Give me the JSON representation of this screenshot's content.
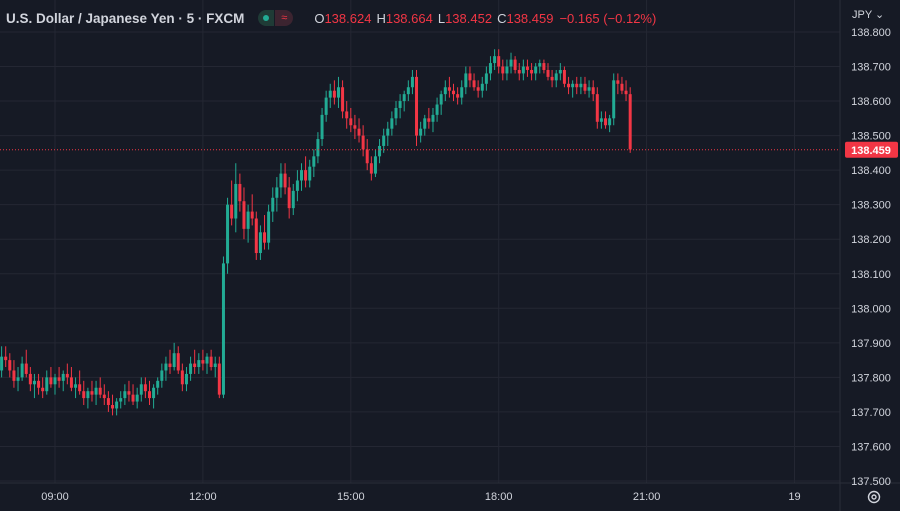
{
  "header": {
    "symbol": "U.S. Dollar / Japanese Yen · 5 · FXCM",
    "open_label": "O",
    "open": "138.624",
    "high_label": "H",
    "high": "138.664",
    "low_label": "L",
    "low": "138.452",
    "close_label": "C",
    "close": "138.459",
    "change": "−0.165 (−0.12%)",
    "badge_right": "≈"
  },
  "currency": "JPY ⌄",
  "colors": {
    "up": "#22ab94",
    "down": "#f23645",
    "background": "#161a25",
    "grid": "#242733",
    "text": "#d1d4dc"
  },
  "icons": {
    "settings": "gear-icon"
  },
  "chart_data": {
    "type": "candlestick",
    "x_ticks": [
      {
        "label": "09:00",
        "hour": 9
      },
      {
        "label": "12:00",
        "hour": 12
      },
      {
        "label": "15:00",
        "hour": 15
      },
      {
        "label": "18:00",
        "hour": 18
      },
      {
        "label": "21:00",
        "hour": 21
      },
      {
        "label": "19",
        "hour": 24
      }
    ],
    "y_ticks": [
      137.5,
      137.6,
      137.7,
      137.8,
      137.9,
      138.0,
      138.1,
      138.2,
      138.3,
      138.4,
      138.5,
      138.6,
      138.7,
      138.8
    ],
    "y_tick_labels": [
      "137.500",
      "137.600",
      "137.700",
      "137.800",
      "137.900",
      "138.000",
      "138.100",
      "138.200",
      "138.300",
      "138.400",
      "138.500",
      "138.600",
      "138.700",
      "138.800"
    ],
    "ylim": [
      137.5,
      138.8
    ],
    "xlim_hours": [
      7.5,
      24.5
    ],
    "last_price": 138.459,
    "last_price_label": "138.459",
    "candles": [
      [
        7.5,
        137.66,
        137.74,
        137.64,
        137.73
      ],
      [
        7.583,
        137.73,
        137.85,
        137.72,
        137.82
      ],
      [
        7.667,
        137.82,
        137.87,
        137.77,
        137.8
      ],
      [
        7.75,
        137.8,
        137.84,
        137.76,
        137.78
      ],
      [
        7.833,
        137.78,
        137.83,
        137.75,
        137.82
      ],
      [
        7.917,
        137.82,
        137.89,
        137.8,
        137.86
      ],
      [
        8.0,
        137.86,
        137.89,
        137.83,
        137.85
      ],
      [
        8.083,
        137.85,
        137.87,
        137.8,
        137.82
      ],
      [
        8.167,
        137.82,
        137.85,
        137.77,
        137.79
      ],
      [
        8.25,
        137.79,
        137.83,
        137.76,
        137.8
      ],
      [
        8.333,
        137.8,
        137.86,
        137.79,
        137.84
      ],
      [
        8.417,
        137.84,
        137.88,
        137.8,
        137.81
      ],
      [
        8.5,
        137.81,
        137.83,
        137.76,
        137.78
      ],
      [
        8.583,
        137.78,
        137.81,
        137.74,
        137.79
      ],
      [
        8.667,
        137.79,
        137.81,
        137.75,
        137.77
      ],
      [
        8.75,
        137.77,
        137.8,
        137.74,
        137.76
      ],
      [
        8.833,
        137.76,
        137.82,
        137.75,
        137.8
      ],
      [
        8.917,
        137.8,
        137.83,
        137.77,
        137.78
      ],
      [
        9.0,
        137.78,
        137.81,
        137.75,
        137.8
      ],
      [
        9.083,
        137.8,
        137.83,
        137.77,
        137.79
      ],
      [
        9.167,
        137.79,
        137.82,
        137.76,
        137.81
      ],
      [
        9.25,
        137.81,
        137.84,
        137.78,
        137.8
      ],
      [
        9.333,
        137.8,
        137.83,
        137.76,
        137.77
      ],
      [
        9.417,
        137.77,
        137.8,
        137.74,
        137.78
      ],
      [
        9.5,
        137.78,
        137.82,
        137.75,
        137.76
      ],
      [
        9.583,
        137.76,
        137.79,
        137.72,
        137.74
      ],
      [
        9.667,
        137.74,
        137.77,
        137.71,
        137.76
      ],
      [
        9.75,
        137.76,
        137.79,
        137.73,
        137.75
      ],
      [
        9.833,
        137.75,
        137.79,
        137.72,
        137.77
      ],
      [
        9.917,
        137.77,
        137.8,
        137.74,
        137.75
      ],
      [
        10.0,
        137.75,
        137.78,
        137.72,
        137.74
      ],
      [
        10.083,
        137.74,
        137.76,
        137.7,
        137.72
      ],
      [
        10.167,
        137.72,
        137.75,
        137.69,
        137.71
      ],
      [
        10.25,
        137.71,
        137.74,
        137.69,
        137.73
      ],
      [
        10.333,
        137.73,
        137.76,
        137.71,
        137.74
      ],
      [
        10.417,
        137.74,
        137.78,
        137.72,
        137.76
      ],
      [
        10.5,
        137.76,
        137.79,
        137.73,
        137.75
      ],
      [
        10.583,
        137.75,
        137.78,
        137.72,
        137.73
      ],
      [
        10.667,
        137.73,
        137.77,
        137.71,
        137.75
      ],
      [
        10.75,
        137.75,
        137.8,
        137.73,
        137.78
      ],
      [
        10.833,
        137.78,
        137.8,
        137.74,
        137.76
      ],
      [
        10.917,
        137.76,
        137.79,
        137.72,
        137.74
      ],
      [
        11.0,
        137.74,
        137.78,
        137.71,
        137.77
      ],
      [
        11.083,
        137.77,
        137.8,
        137.75,
        137.79
      ],
      [
        11.167,
        137.79,
        137.84,
        137.77,
        137.82
      ],
      [
        11.25,
        137.82,
        137.86,
        137.79,
        137.84
      ],
      [
        11.333,
        137.84,
        137.88,
        137.81,
        137.83
      ],
      [
        11.417,
        137.83,
        137.9,
        137.82,
        137.87
      ],
      [
        11.5,
        137.87,
        137.89,
        137.81,
        137.82
      ],
      [
        11.583,
        137.82,
        137.84,
        137.76,
        137.78
      ],
      [
        11.667,
        137.78,
        137.83,
        137.76,
        137.81
      ],
      [
        11.75,
        137.81,
        137.86,
        137.79,
        137.84
      ],
      [
        11.833,
        137.84,
        137.88,
        137.81,
        137.83
      ],
      [
        11.917,
        137.83,
        137.87,
        137.81,
        137.85
      ],
      [
        12.0,
        137.85,
        137.88,
        137.82,
        137.84
      ],
      [
        12.083,
        137.84,
        137.87,
        137.81,
        137.86
      ],
      [
        12.167,
        137.86,
        137.88,
        137.82,
        137.83
      ],
      [
        12.25,
        137.83,
        137.86,
        137.8,
        137.84
      ],
      [
        12.333,
        137.84,
        137.86,
        137.74,
        137.75
      ],
      [
        12.417,
        137.75,
        138.15,
        137.74,
        138.13
      ],
      [
        12.5,
        138.13,
        138.32,
        138.1,
        138.3
      ],
      [
        12.583,
        138.3,
        138.37,
        138.24,
        138.26
      ],
      [
        12.667,
        138.26,
        138.42,
        138.22,
        138.36
      ],
      [
        12.75,
        138.36,
        138.39,
        138.28,
        138.31
      ],
      [
        12.833,
        138.31,
        138.35,
        138.2,
        138.23
      ],
      [
        12.917,
        138.23,
        138.3,
        138.19,
        138.28
      ],
      [
        13.0,
        138.28,
        138.33,
        138.24,
        138.26
      ],
      [
        13.083,
        138.26,
        138.28,
        138.14,
        138.16
      ],
      [
        13.167,
        138.16,
        138.24,
        138.14,
        138.22
      ],
      [
        13.25,
        138.22,
        138.27,
        138.17,
        138.19
      ],
      [
        13.333,
        138.19,
        138.3,
        138.17,
        138.28
      ],
      [
        13.417,
        138.28,
        138.35,
        138.25,
        138.32
      ],
      [
        13.5,
        138.32,
        138.38,
        138.28,
        138.35
      ],
      [
        13.583,
        138.35,
        138.42,
        138.32,
        138.39
      ],
      [
        13.667,
        138.39,
        138.42,
        138.33,
        138.35
      ],
      [
        13.75,
        138.35,
        138.38,
        138.26,
        138.29
      ],
      [
        13.833,
        138.29,
        138.36,
        138.27,
        138.34
      ],
      [
        13.917,
        138.34,
        138.4,
        138.31,
        138.37
      ],
      [
        14.0,
        138.37,
        138.42,
        138.34,
        138.4
      ],
      [
        14.083,
        138.4,
        138.44,
        138.35,
        138.37
      ],
      [
        14.167,
        138.37,
        138.43,
        138.35,
        138.41
      ],
      [
        14.25,
        138.41,
        138.46,
        138.38,
        138.44
      ],
      [
        14.333,
        138.44,
        138.51,
        138.42,
        138.49
      ],
      [
        14.417,
        138.49,
        138.58,
        138.47,
        138.56
      ],
      [
        14.5,
        138.56,
        138.63,
        138.54,
        138.61
      ],
      [
        14.583,
        138.61,
        138.65,
        138.58,
        138.63
      ],
      [
        14.667,
        138.63,
        138.66,
        138.59,
        138.61
      ],
      [
        14.75,
        138.61,
        138.67,
        138.58,
        138.64
      ],
      [
        14.833,
        138.64,
        138.66,
        138.55,
        138.57
      ],
      [
        14.917,
        138.57,
        138.6,
        138.52,
        138.55
      ],
      [
        15.0,
        138.55,
        138.58,
        138.51,
        138.53
      ],
      [
        15.083,
        138.53,
        138.56,
        138.49,
        138.52
      ],
      [
        15.167,
        138.52,
        138.55,
        138.48,
        138.5
      ],
      [
        15.25,
        138.5,
        138.53,
        138.44,
        138.46
      ],
      [
        15.333,
        138.46,
        138.49,
        138.4,
        138.42
      ],
      [
        15.417,
        138.42,
        138.44,
        138.37,
        138.39
      ],
      [
        15.5,
        138.39,
        138.46,
        138.38,
        138.44
      ],
      [
        15.583,
        138.44,
        138.49,
        138.42,
        138.47
      ],
      [
        15.667,
        138.47,
        138.52,
        138.45,
        138.5
      ],
      [
        15.75,
        138.5,
        138.54,
        138.47,
        138.52
      ],
      [
        15.833,
        138.52,
        138.57,
        138.5,
        138.55
      ],
      [
        15.917,
        138.55,
        138.6,
        138.53,
        138.58
      ],
      [
        16.0,
        138.58,
        138.62,
        138.55,
        138.6
      ],
      [
        16.083,
        138.6,
        138.63,
        138.57,
        138.62
      ],
      [
        16.167,
        138.62,
        138.66,
        138.6,
        138.64
      ],
      [
        16.25,
        138.64,
        138.69,
        138.62,
        138.67
      ],
      [
        16.333,
        138.67,
        138.69,
        138.47,
        138.5
      ],
      [
        16.417,
        138.5,
        138.54,
        138.48,
        138.52
      ],
      [
        16.5,
        138.52,
        138.56,
        138.5,
        138.55
      ],
      [
        16.583,
        138.55,
        138.58,
        138.52,
        138.54
      ],
      [
        16.667,
        138.54,
        138.58,
        138.51,
        138.56
      ],
      [
        16.75,
        138.56,
        138.61,
        138.54,
        138.59
      ],
      [
        16.833,
        138.59,
        138.63,
        138.56,
        138.62
      ],
      [
        16.917,
        138.62,
        138.66,
        138.6,
        138.64
      ],
      [
        17.0,
        138.64,
        138.67,
        138.61,
        138.63
      ],
      [
        17.083,
        138.63,
        138.65,
        138.6,
        138.62
      ],
      [
        17.167,
        138.62,
        138.64,
        138.59,
        138.61
      ],
      [
        17.25,
        138.61,
        138.66,
        138.59,
        138.64
      ],
      [
        17.333,
        138.64,
        138.7,
        138.62,
        138.68
      ],
      [
        17.417,
        138.68,
        138.7,
        138.64,
        138.66
      ],
      [
        17.5,
        138.66,
        138.68,
        138.63,
        138.64
      ],
      [
        17.583,
        138.64,
        138.66,
        138.61,
        138.63
      ],
      [
        17.667,
        138.63,
        138.67,
        138.61,
        138.65
      ],
      [
        17.75,
        138.65,
        138.7,
        138.63,
        138.68
      ],
      [
        17.833,
        138.68,
        138.73,
        138.66,
        138.71
      ],
      [
        17.917,
        138.71,
        138.75,
        138.69,
        138.73
      ],
      [
        18.0,
        138.73,
        138.75,
        138.68,
        138.7
      ],
      [
        18.083,
        138.7,
        138.72,
        138.66,
        138.68
      ],
      [
        18.167,
        138.68,
        138.72,
        138.66,
        138.7
      ],
      [
        18.25,
        138.7,
        138.74,
        138.68,
        138.72
      ],
      [
        18.333,
        138.72,
        138.73,
        138.68,
        138.69
      ],
      [
        18.417,
        138.69,
        138.71,
        138.66,
        138.68
      ],
      [
        18.5,
        138.68,
        138.72,
        138.66,
        138.7
      ],
      [
        18.583,
        138.7,
        138.72,
        138.67,
        138.69
      ],
      [
        18.667,
        138.69,
        138.71,
        138.66,
        138.68
      ],
      [
        18.75,
        138.68,
        138.71,
        138.66,
        138.7
      ],
      [
        18.833,
        138.7,
        138.72,
        138.68,
        138.71
      ],
      [
        18.917,
        138.71,
        138.72,
        138.68,
        138.69
      ],
      [
        19.0,
        138.69,
        138.71,
        138.66,
        138.67
      ],
      [
        19.083,
        138.67,
        138.69,
        138.64,
        138.66
      ],
      [
        19.167,
        138.66,
        138.69,
        138.64,
        138.68
      ],
      [
        19.25,
        138.68,
        138.71,
        138.66,
        138.69
      ],
      [
        19.333,
        138.69,
        138.7,
        138.64,
        138.65
      ],
      [
        19.417,
        138.65,
        138.67,
        138.62,
        138.64
      ],
      [
        19.5,
        138.64,
        138.66,
        138.61,
        138.65
      ],
      [
        19.583,
        138.65,
        138.67,
        138.62,
        138.64
      ],
      [
        19.667,
        138.64,
        138.67,
        138.62,
        138.65
      ],
      [
        19.75,
        138.65,
        138.67,
        138.62,
        138.63
      ],
      [
        19.833,
        138.63,
        138.66,
        138.61,
        138.64
      ],
      [
        19.917,
        138.64,
        138.66,
        138.6,
        138.62
      ],
      [
        20.0,
        138.62,
        138.64,
        138.52,
        138.54
      ],
      [
        20.083,
        138.54,
        138.57,
        138.52,
        138.55
      ],
      [
        20.167,
        138.55,
        138.57,
        138.52,
        138.53
      ],
      [
        20.25,
        138.53,
        138.56,
        138.51,
        138.55
      ],
      [
        20.333,
        138.55,
        138.68,
        138.53,
        138.66
      ],
      [
        20.417,
        138.66,
        138.68,
        138.62,
        138.65
      ],
      [
        20.5,
        138.65,
        138.67,
        138.62,
        138.63
      ],
      [
        20.583,
        138.63,
        138.66,
        138.6,
        138.62
      ],
      [
        20.667,
        138.62,
        138.64,
        138.45,
        138.46
      ]
    ]
  }
}
